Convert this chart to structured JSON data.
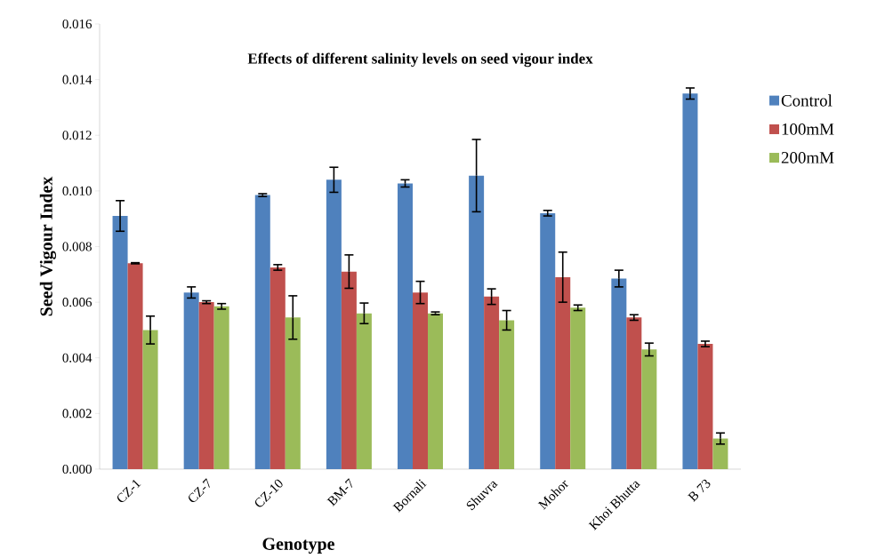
{
  "chart_data": {
    "type": "bar",
    "title": "Effects of different salinity levels on seed vigour index",
    "xlabel": "Genotype",
    "ylabel": "Seed Vigour Index",
    "categories": [
      "CZ-1",
      "CZ-7",
      "CZ-10",
      "BM-7",
      "Bornali",
      "Shuvra",
      "Mohor",
      "Khoi Bhutta",
      "B 73"
    ],
    "series": [
      {
        "name": "Control",
        "color": "#4f81bd",
        "values": [
          0.0091,
          0.00635,
          0.00985,
          0.0104,
          0.01027,
          0.01055,
          0.0092,
          0.00685,
          0.0135
        ],
        "errors": [
          0.00055,
          0.0002,
          5e-05,
          0.00045,
          0.00013,
          0.0013,
          0.0001,
          0.0003,
          0.0002
        ]
      },
      {
        "name": "100mM",
        "color": "#c0504d",
        "values": [
          0.0074,
          0.006,
          0.00725,
          0.0071,
          0.00635,
          0.0062,
          0.0069,
          0.00545,
          0.0045
        ],
        "errors": [
          2e-05,
          5e-05,
          0.0001,
          0.0006,
          0.0004,
          0.00028,
          0.0009,
          0.0001,
          0.0001
        ]
      },
      {
        "name": "200mM",
        "color": "#9bbb59",
        "values": [
          0.005,
          0.00585,
          0.00545,
          0.0056,
          0.0056,
          0.00535,
          0.0058,
          0.0043,
          0.0011
        ],
        "errors": [
          0.0005,
          0.0001,
          0.00078,
          0.00037,
          5e-05,
          0.00035,
          0.0001,
          0.00023,
          0.0002
        ]
      }
    ],
    "ylim": [
      0,
      0.016
    ],
    "yticks": [
      {
        "value": 0,
        "label": "0.000"
      },
      {
        "value": 0.002,
        "label": "0.002"
      },
      {
        "value": 0.004,
        "label": "0.004"
      },
      {
        "value": 0.006,
        "label": "0.006"
      },
      {
        "value": 0.008,
        "label": "0.008"
      },
      {
        "value": 0.01,
        "label": "0.010"
      },
      {
        "value": 0.012,
        "label": "0.012"
      },
      {
        "value": 0.014,
        "label": "0.014"
      },
      {
        "value": 0.016,
        "label": "0.016"
      }
    ],
    "grid": false,
    "legend": "right"
  }
}
